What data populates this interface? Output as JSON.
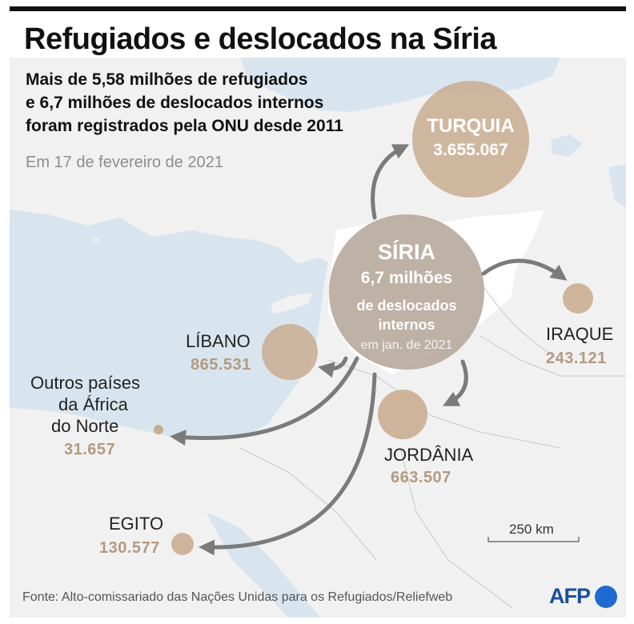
{
  "title": "Refugiados e deslocados na Síria",
  "subtitle_lines": [
    "Mais de 5,58 milhões de refugiados",
    "e 6,7 milhões de deslocados internos",
    "foram registrados pela ONU desde 2011"
  ],
  "date_note": "Em 17 de fevereiro de 2021",
  "syria": {
    "name": "SÍRIA",
    "value": "6,7 milhões",
    "desc_line1": "de deslocados",
    "desc_line2": "internos",
    "date": "em jan. de 2021"
  },
  "countries": {
    "turquia": {
      "name": "TURQUIA",
      "value": "3.655.067"
    },
    "libano": {
      "name": "LÍBANO",
      "value": "865.531"
    },
    "iraque": {
      "name": "IRAQUE",
      "value": "243.121"
    },
    "jordania": {
      "name": "JORDÂNIA",
      "value": "663.507"
    },
    "egito": {
      "name": "EGITO",
      "value": "130.577"
    },
    "africa_norte": {
      "name_line1": "Outros países",
      "name_line2": "da África",
      "name_line3": "do Norte",
      "value": "31.657"
    }
  },
  "scale_label": "250 km",
  "source": "Fonte: Alto-comissariado das Nações Unidas para os Refugiados/Reliefweb",
  "logo": "AFP",
  "colors": {
    "sea": "#d8e5ee",
    "land": "#f1f1f1",
    "syria_land": "#ffffff",
    "bubble": "#c9ad91",
    "syria_bubble": "#b7a99b",
    "arrow": "#7b7b7b",
    "value_text": "#b39a81",
    "afp_blue": "#1f6ad0"
  }
}
